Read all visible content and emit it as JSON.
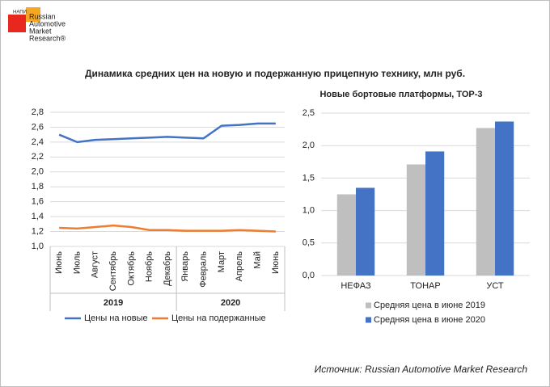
{
  "header": {
    "logo_small": "НАПИ",
    "logo_lines": [
      "Russian",
      "Automotive",
      "Market",
      "Research®"
    ]
  },
  "title": "Динамика средних цен на новую и подержанную прицепную технику, млн руб.",
  "source": "Источник: Russian Automotive Market Research",
  "chart_data": [
    {
      "type": "line",
      "categories": [
        "Июнь",
        "Июль",
        "Август",
        "Сентябрь",
        "Октябрь",
        "Ноябрь",
        "Декабрь",
        "Январь",
        "Февраль",
        "Март",
        "Апрель",
        "Май",
        "Июнь"
      ],
      "category_groups": [
        {
          "label": "2019",
          "span": 7
        },
        {
          "label": "2020",
          "span": 6
        }
      ],
      "series": [
        {
          "name": "Цены на новые",
          "color": "#4472c4",
          "values": [
            2.5,
            2.4,
            2.43,
            2.44,
            2.45,
            2.46,
            2.47,
            2.46,
            2.45,
            2.62,
            2.63,
            2.65,
            2.65
          ]
        },
        {
          "name": "Цены на подержанные",
          "color": "#ed7d31",
          "values": [
            1.25,
            1.24,
            1.26,
            1.28,
            1.26,
            1.22,
            1.22,
            1.21,
            1.21,
            1.21,
            1.22,
            1.21,
            1.2
          ]
        }
      ],
      "ylim": [
        1.0,
        2.8
      ],
      "yticks": [
        {
          "value": 1.0,
          "label": "1,0"
        },
        {
          "value": 1.2,
          "label": "1,2"
        },
        {
          "value": 1.4,
          "label": "1,4"
        },
        {
          "value": 1.6,
          "label": "1,6"
        },
        {
          "value": 1.8,
          "label": "1,8"
        },
        {
          "value": 2.0,
          "label": "2,0"
        },
        {
          "value": 2.2,
          "label": "2,2"
        },
        {
          "value": 2.4,
          "label": "2,4"
        },
        {
          "value": 2.6,
          "label": "2,6"
        },
        {
          "value": 2.8,
          "label": "2,8"
        }
      ],
      "grid": true,
      "legend": "bottom"
    },
    {
      "type": "bar",
      "title": "Новые бортовые платформы, ТОР-3",
      "categories": [
        "НЕФАЗ",
        "ТОНАР",
        "УСТ"
      ],
      "series": [
        {
          "name": "Средняя цена в июне 2019",
          "color": "#bfbfbf",
          "values": [
            1.25,
            1.71,
            2.27
          ]
        },
        {
          "name": "Средняя цена в июне 2020",
          "color": "#4472c4",
          "values": [
            1.35,
            1.91,
            2.37
          ]
        }
      ],
      "ylim": [
        0,
        2.5
      ],
      "yticks": [
        {
          "value": 0,
          "label": "0,0"
        },
        {
          "value": 0.5,
          "label": "0,5"
        },
        {
          "value": 1.0,
          "label": "1,0"
        },
        {
          "value": 1.5,
          "label": "1,5"
        },
        {
          "value": 2.0,
          "label": "2,0"
        },
        {
          "value": 2.5,
          "label": "2,5"
        }
      ],
      "grid": true,
      "legend": "bottom"
    }
  ]
}
